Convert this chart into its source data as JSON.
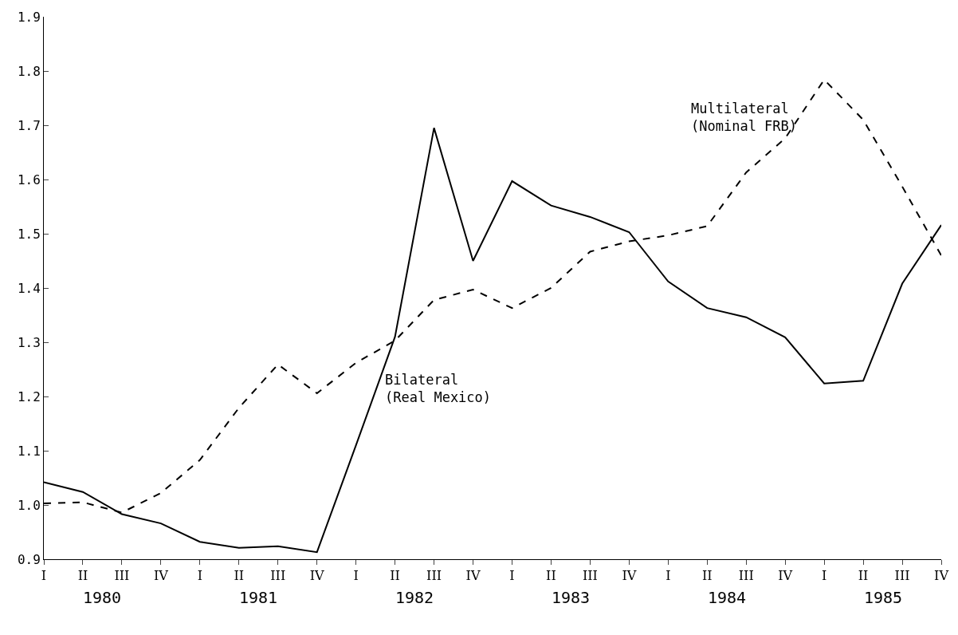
{
  "chart_data": {
    "type": "line",
    "categories": [
      "I",
      "II",
      "III",
      "IV",
      "I",
      "II",
      "III",
      "IV",
      "I",
      "II",
      "III",
      "IV",
      "I",
      "II",
      "III",
      "IV",
      "I",
      "II",
      "III",
      "IV",
      "I",
      "II",
      "III",
      "IV"
    ],
    "series": [
      {
        "name": "Bilateral\n(Real Mexico)",
        "color": "#000000",
        "line_style": "solid",
        "values": [
          1.042,
          1.024,
          0.983,
          0.966,
          0.932,
          0.921,
          0.924,
          0.913,
          1.11,
          1.31,
          1.695,
          1.45,
          1.597,
          1.552,
          1.531,
          1.503,
          1.412,
          1.363,
          1.346,
          1.309,
          1.224,
          1.229,
          1.408,
          1.516
        ]
      },
      {
        "name": "Multilateral\n(Nominal FRB)",
        "color": "#000000",
        "line_style": "dashed",
        "values": [
          1.003,
          1.005,
          0.986,
          1.022,
          1.083,
          1.179,
          1.259,
          1.206,
          1.262,
          1.303,
          1.378,
          1.397,
          1.363,
          1.4,
          1.467,
          1.486,
          1.497,
          1.514,
          1.613,
          1.676,
          1.784,
          1.71,
          1.587,
          1.46
        ]
      }
    ],
    "annotations": [
      "1980",
      "1981",
      "1982",
      "1983",
      "1984",
      "1985"
    ],
    "ylim": [
      0.9,
      1.9
    ],
    "yticks": [
      0.9,
      {
        "value": 1.0,
        "label": "1.0"
      },
      1.1,
      1.2,
      1.3,
      1.4,
      1.5,
      1.6,
      1.7,
      1.8,
      1.9
    ],
    "grid": false,
    "legend": false,
    "marker": "none"
  }
}
